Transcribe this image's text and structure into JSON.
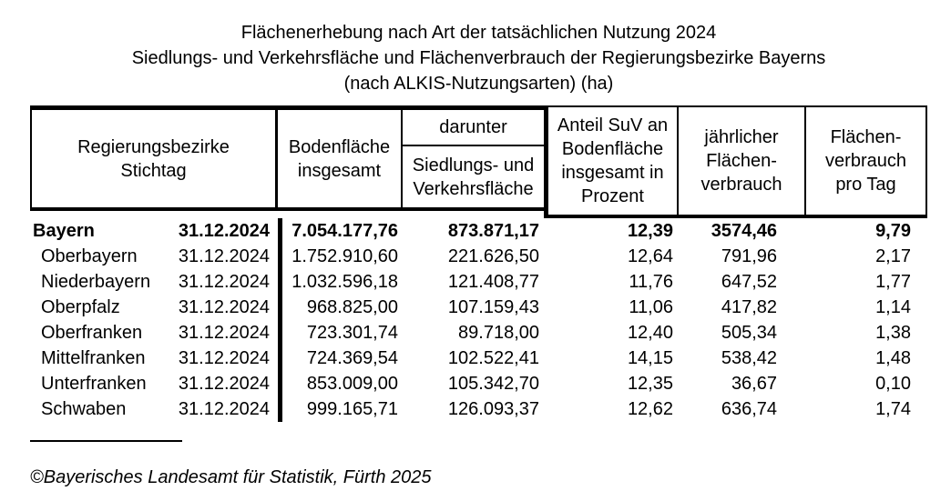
{
  "title": {
    "line1": "Flächenerhebung nach Art der tatsächlichen Nutzung 2024",
    "line2": "Siedlungs- und Verkehrsfläche und Flächenverbrauch der Regierungsbezirke Bayerns",
    "line3": "(nach ALKIS-Nutzungsarten) (ha)"
  },
  "table": {
    "header": {
      "col_region": "Regierungsbezirke\nStichtag",
      "col_bodenflaeche": "Bodenfläche\ninsgesamt",
      "col_group_darunter": "darunter",
      "col_suv": "Siedlungs- und\nVerkehrsfläche",
      "col_anteil": "Anteil SuV an\nBodenfläche\ninsgesamt in\nProzent",
      "col_jaehrlich": "jährlicher\nFlächen-\nverbrauch",
      "col_pro_tag": "Flächen-\nverbrauch\npro Tag"
    },
    "rows": [
      {
        "region": "Bayern",
        "date": "31.12.2024",
        "bodenflaeche": "7.054.177,76",
        "suv": "873.871,17",
        "anteil": "12,39",
        "jaehrlich": "3574,46",
        "pro_tag": "9,79",
        "is_total": true
      },
      {
        "region": "Oberbayern",
        "date": "31.12.2024",
        "bodenflaeche": "1.752.910,60",
        "suv": "221.626,50",
        "anteil": "12,64",
        "jaehrlich": "791,96",
        "pro_tag": "2,17",
        "is_total": false
      },
      {
        "region": "Niederbayern",
        "date": "31.12.2024",
        "bodenflaeche": "1.032.596,18",
        "suv": "121.408,77",
        "anteil": "11,76",
        "jaehrlich": "647,52",
        "pro_tag": "1,77",
        "is_total": false
      },
      {
        "region": "Oberpfalz",
        "date": "31.12.2024",
        "bodenflaeche": "968.825,00",
        "suv": "107.159,43",
        "anteil": "11,06",
        "jaehrlich": "417,82",
        "pro_tag": "1,14",
        "is_total": false
      },
      {
        "region": "Oberfranken",
        "date": "31.12.2024",
        "bodenflaeche": "723.301,74",
        "suv": "89.718,00",
        "anteil": "12,40",
        "jaehrlich": "505,34",
        "pro_tag": "1,38",
        "is_total": false
      },
      {
        "region": "Mittelfranken",
        "date": "31.12.2024",
        "bodenflaeche": "724.369,54",
        "suv": "102.522,41",
        "anteil": "14,15",
        "jaehrlich": "538,42",
        "pro_tag": "1,48",
        "is_total": false
      },
      {
        "region": "Unterfranken",
        "date": "31.12.2024",
        "bodenflaeche": "853.009,00",
        "suv": "105.342,70",
        "anteil": "12,35",
        "jaehrlich": "36,67",
        "pro_tag": "0,10",
        "is_total": false
      },
      {
        "region": "Schwaben",
        "date": "31.12.2024",
        "bodenflaeche": "999.165,71",
        "suv": "126.093,37",
        "anteil": "12,62",
        "jaehrlich": "636,74",
        "pro_tag": "1,74",
        "is_total": false
      }
    ]
  },
  "footer": {
    "copyright": "©Bayerisches Landesamt für Statistik, Fürth 2025"
  },
  "colors": {
    "text": "#000000",
    "border": "#000000",
    "background": "#ffffff"
  }
}
